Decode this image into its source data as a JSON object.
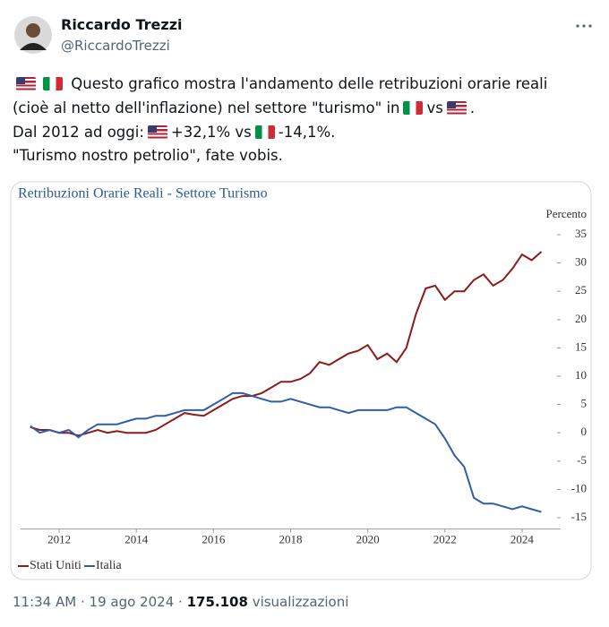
{
  "author": {
    "name": "Riccardo Trezzi",
    "handle": "@RiccardoTrezzi"
  },
  "text": [
    [
      "Questo grafico mostra l'andamento delle retribuzioni orarie reali"
    ],
    [
      "(cioè al netto dell'inflazione) nel settore \"turismo\" in",
      "vs",
      "."
    ],
    [
      "Dal 2012 ad oggi:",
      "+32,1% vs",
      "-14,1%."
    ],
    [
      "\"Turismo nostro petrolio\", fate vobis."
    ]
  ],
  "footer": {
    "time": "11:34 AM",
    "separator": "·",
    "date": "19 ago 2024",
    "views": "175.108",
    "views_label": "visualizzazioni"
  },
  "chart_data": {
    "type": "line",
    "title": "Retribuzioni Orarie Reali - Settore Turismo",
    "y_label": "Percento",
    "x": [
      2011.25,
      2011.5,
      2011.75,
      2012,
      2012.25,
      2012.5,
      2012.75,
      2013,
      2013.25,
      2013.5,
      2013.75,
      2014,
      2014.25,
      2014.5,
      2014.75,
      2015,
      2015.25,
      2015.5,
      2015.75,
      2016,
      2016.25,
      2016.5,
      2016.75,
      2017,
      2017.25,
      2017.5,
      2017.75,
      2018,
      2018.25,
      2018.5,
      2018.75,
      2019,
      2019.25,
      2019.5,
      2019.75,
      2020,
      2020.25,
      2020.5,
      2020.75,
      2021,
      2021.25,
      2021.5,
      2021.75,
      2022,
      2022.25,
      2022.5,
      2022.75,
      2023,
      2023.25,
      2023.5,
      2023.75,
      2024,
      2024.25,
      2024.5
    ],
    "series": [
      {
        "name": "Stati Uniti",
        "color": "#8b1c1c",
        "values": [
          1,
          0.5,
          0.5,
          0,
          0,
          -0.5,
          0,
          0.5,
          0,
          0.3,
          0,
          0,
          0,
          0.5,
          1.5,
          2.5,
          3.5,
          3.2,
          3,
          4,
          5,
          6,
          6.5,
          6.5,
          7,
          8,
          9,
          9,
          9.5,
          10.5,
          12.5,
          12,
          13,
          14,
          14.5,
          15.5,
          13,
          14,
          12.5,
          15,
          21,
          25.5,
          26,
          23.5,
          25,
          25,
          27,
          28,
          26,
          27,
          29,
          31.5,
          30.5,
          32
        ]
      },
      {
        "name": "Italia",
        "color": "#2f5ea8",
        "values": [
          1.2,
          0,
          0.5,
          0,
          0.5,
          -0.8,
          0.5,
          1.5,
          1.5,
          1.5,
          2,
          2.5,
          2.5,
          3,
          3,
          3.5,
          4,
          4,
          4,
          5,
          6,
          7,
          7,
          6.5,
          6,
          5.5,
          5.5,
          6,
          5.5,
          5,
          4.5,
          4.5,
          4,
          3.5,
          4,
          4,
          4,
          4,
          4.5,
          4.5,
          3.5,
          2.5,
          1.5,
          -1,
          -4,
          -6,
          -11.5,
          -12.5,
          -12.5,
          -13,
          -13.5,
          -13,
          -13.5,
          -14
        ]
      }
    ],
    "xlim": [
      2011,
      2025
    ],
    "xticks": [
      2012,
      2014,
      2016,
      2018,
      2020,
      2022,
      2024
    ],
    "ylim": [
      -17,
      36
    ],
    "yticks": [
      -15,
      -10,
      -5,
      0,
      5,
      10,
      15,
      20,
      25,
      30,
      35
    ],
    "legend": "bottom-left"
  }
}
